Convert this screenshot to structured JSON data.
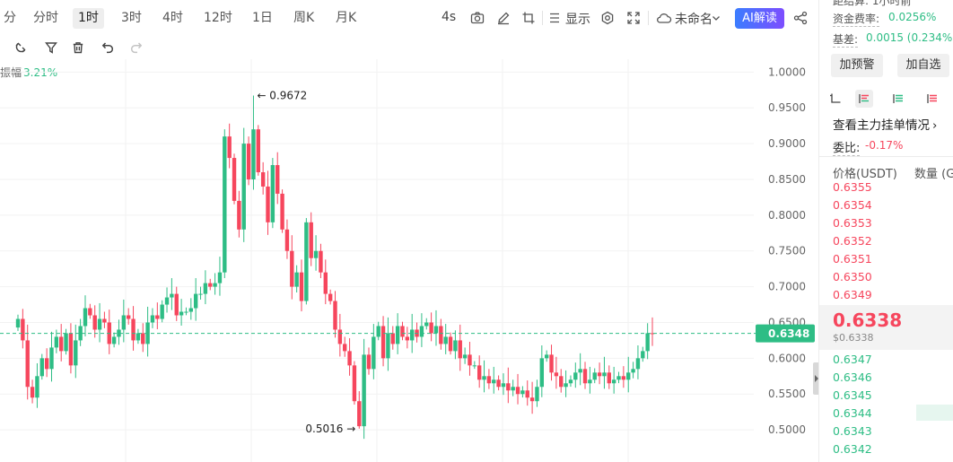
{
  "toolbar": {
    "timeframes": [
      "分",
      "分时",
      "1时",
      "3时",
      "4时",
      "12时",
      "1日",
      "周K",
      "月K"
    ],
    "active_timeframe": "1时",
    "countdown": "4s",
    "display_label": "显示",
    "layout_name": "未命名",
    "ai_label": "AI解读"
  },
  "icons": {
    "toolbar": [
      "camera-icon",
      "pen-icon",
      "crop-icon",
      "display-list-icon",
      "settings-icon",
      "fullscreen-icon",
      "cloud-icon",
      "chevron-down-icon",
      "share-icon"
    ],
    "drawing": [
      "magnet-icon",
      "filter-icon",
      "trash-icon",
      "undo-icon",
      "redo-icon"
    ],
    "orderbook": [
      "orderbook-both-icon",
      "orderbook-bids-icon",
      "orderbook-asks-icon",
      "orderbook-depth-icon"
    ]
  },
  "chart_overlay": {
    "range_label": "振幅",
    "range_value": "3.21%"
  },
  "chart_data": {
    "type": "candlestick",
    "y_ticks": [
      "1.0000",
      "0.9500",
      "0.9000",
      "0.8500",
      "0.8000",
      "0.7500",
      "0.7000",
      "0.6500",
      "0.6000",
      "0.5500",
      "0.5000"
    ],
    "ylim": [
      0.455,
      1.018
    ],
    "last_price": "0.6348",
    "high_label": "0.9672",
    "low_label": "0.5016",
    "high_value": 0.9672,
    "low_value": 0.5016,
    "candle_closes": [
      0.655,
      0.625,
      0.56,
      0.545,
      0.575,
      0.6,
      0.585,
      0.615,
      0.63,
      0.61,
      0.635,
      0.59,
      0.625,
      0.645,
      0.67,
      0.66,
      0.64,
      0.655,
      0.65,
      0.62,
      0.63,
      0.64,
      0.66,
      0.655,
      0.625,
      0.635,
      0.62,
      0.65,
      0.66,
      0.655,
      0.675,
      0.685,
      0.69,
      0.66,
      0.665,
      0.665,
      0.67,
      0.69,
      0.69,
      0.705,
      0.7,
      0.705,
      0.72,
      0.91,
      0.88,
      0.82,
      0.78,
      0.9,
      0.85,
      0.92,
      0.86,
      0.84,
      0.79,
      0.87,
      0.83,
      0.78,
      0.75,
      0.7,
      0.72,
      0.68,
      0.79,
      0.74,
      0.75,
      0.72,
      0.69,
      0.68,
      0.64,
      0.62,
      0.61,
      0.59,
      0.54,
      0.505,
      0.605,
      0.585,
      0.63,
      0.645,
      0.6,
      0.635,
      0.62,
      0.645,
      0.63,
      0.625,
      0.64,
      0.63,
      0.645,
      0.65,
      0.635,
      0.645,
      0.62,
      0.63,
      0.61,
      0.625,
      0.6,
      0.605,
      0.59,
      0.59,
      0.57,
      0.575,
      0.565,
      0.57,
      0.56,
      0.565,
      0.555,
      0.56,
      0.55,
      0.555,
      0.545,
      0.54,
      0.56,
      0.6,
      0.605,
      0.58,
      0.575,
      0.56,
      0.565,
      0.57,
      0.58,
      0.585,
      0.565,
      0.57,
      0.58,
      0.575,
      0.58,
      0.565,
      0.57,
      0.575,
      0.57,
      0.58,
      0.585,
      0.6,
      0.61,
      0.635,
      0.6348
    ]
  },
  "panel": {
    "top_partial": "距结算:  1小时前",
    "funding_label": "资金费率:",
    "funding_value": "0.0256%",
    "basis_label": "基差:",
    "basis_value": "0.0015 (0.234%)",
    "alert_button": "加预警",
    "watch_button": "加自选",
    "main_orders": "查看主力挂单情况",
    "ratio_label": "委比:",
    "ratio_value": "-0.17%",
    "col_price": "价格(USDT)",
    "col_qty": "数量 (G",
    "asks": [
      "0.6355",
      "0.6354",
      "0.6353",
      "0.6352",
      "0.6351",
      "0.6350",
      "0.6349"
    ],
    "mid_price": "0.6338",
    "mid_sub": "$0.6338",
    "bids": [
      "0.6347",
      "0.6346",
      "0.6345",
      "0.6344",
      "0.6343",
      "0.6342"
    ]
  },
  "colors": {
    "up": "#2ebd85",
    "down": "#f6465d",
    "grid": "#f2f2f2",
    "price_tag": "#2ebd85"
  }
}
